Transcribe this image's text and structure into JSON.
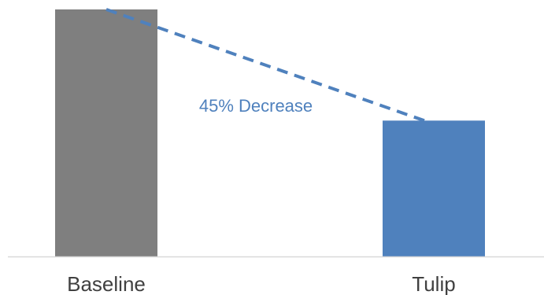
{
  "chart_data": {
    "type": "bar",
    "categories": [
      "Baseline",
      "Tulip"
    ],
    "values": [
      100,
      55
    ],
    "ylim": [
      0,
      100
    ],
    "bar_colors": [
      "#7f7f7f",
      "#4f81bd"
    ],
    "axis_color": "#d9d9d9",
    "gridlines": false,
    "annotations": [
      {
        "text": "45% Decrease",
        "color": "#4f81bd",
        "style": "dashed-line",
        "from_category": "Baseline",
        "to_category": "Tulip"
      }
    ]
  }
}
